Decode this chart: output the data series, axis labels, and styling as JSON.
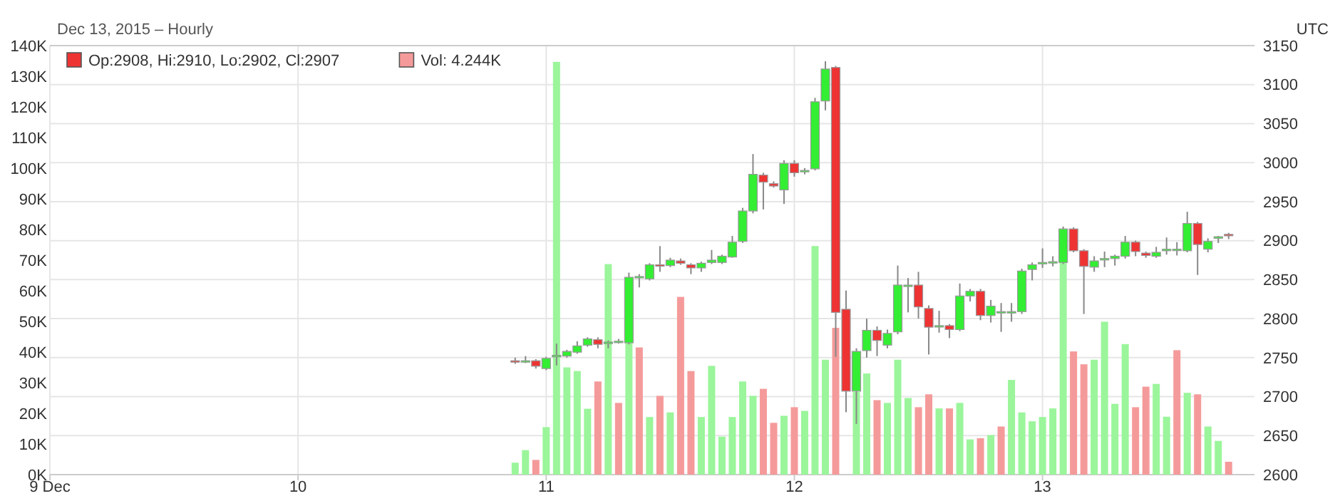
{
  "chart_data": {
    "type": "candlestick",
    "subtitle": "Dec 13, 2015 – Hourly",
    "annotations": [
      "UTC"
    ],
    "legend": "top left",
    "grid": true,
    "x": [
      "2015-12-10T21:00",
      "2015-12-10T22:00",
      "2015-12-10T23:00",
      "2015-12-11T00:00",
      "2015-12-11T01:00",
      "2015-12-11T02:00",
      "2015-12-11T03:00",
      "2015-12-11T04:00",
      "2015-12-11T05:00",
      "2015-12-11T06:00",
      "2015-12-11T07:00",
      "2015-12-11T08:00",
      "2015-12-11T09:00",
      "2015-12-11T10:00",
      "2015-12-11T11:00",
      "2015-12-11T12:00",
      "2015-12-11T13:00",
      "2015-12-11T14:00",
      "2015-12-11T15:00",
      "2015-12-11T16:00",
      "2015-12-11T17:00",
      "2015-12-11T18:00",
      "2015-12-11T19:00",
      "2015-12-11T20:00",
      "2015-12-11T21:00",
      "2015-12-11T22:00",
      "2015-12-11T23:00",
      "2015-12-12T00:00",
      "2015-12-12T01:00",
      "2015-12-12T02:00",
      "2015-12-12T03:00",
      "2015-12-12T04:00",
      "2015-12-12T05:00",
      "2015-12-12T06:00",
      "2015-12-12T07:00",
      "2015-12-12T08:00",
      "2015-12-12T09:00",
      "2015-12-12T10:00",
      "2015-12-12T11:00",
      "2015-12-12T12:00",
      "2015-12-12T13:00",
      "2015-12-12T14:00",
      "2015-12-12T15:00",
      "2015-12-12T16:00",
      "2015-12-12T17:00",
      "2015-12-12T18:00",
      "2015-12-12T19:00",
      "2015-12-12T20:00",
      "2015-12-12T21:00",
      "2015-12-12T22:00",
      "2015-12-12T23:00",
      "2015-12-13T00:00",
      "2015-12-13T01:00",
      "2015-12-13T02:00",
      "2015-12-13T03:00",
      "2015-12-13T04:00",
      "2015-12-13T05:00",
      "2015-12-13T06:00",
      "2015-12-13T07:00",
      "2015-12-13T08:00",
      "2015-12-13T09:00",
      "2015-12-13T10:00",
      "2015-12-13T11:00",
      "2015-12-13T12:00",
      "2015-12-13T13:00",
      "2015-12-13T14:00",
      "2015-12-13T15:00",
      "2015-12-13T16:00",
      "2015-12-13T17:00",
      "2015-12-13T18:00"
    ],
    "xlim": [
      "2015-12-09T00:00",
      "2015-12-13T20:30"
    ],
    "xticks": [
      {
        "value": "2015-12-09",
        "label": "9 Dec"
      },
      {
        "value": "2015-12-10",
        "label": "10"
      },
      {
        "value": "2015-12-11",
        "label": "11"
      },
      {
        "value": "2015-12-12",
        "label": "12"
      },
      {
        "value": "2015-12-13",
        "label": "13"
      }
    ],
    "ylim": [
      0,
      140
    ],
    "yticks": [
      {
        "value": 0,
        "label": "0K"
      },
      {
        "value": 10,
        "label": "10K"
      },
      {
        "value": 20,
        "label": "20K"
      },
      {
        "value": 30,
        "label": "30K"
      },
      {
        "value": 40,
        "label": "40K"
      },
      {
        "value": 50,
        "label": "50K"
      },
      {
        "value": 60,
        "label": "60K"
      },
      {
        "value": 70,
        "label": "70K"
      },
      {
        "value": 80,
        "label": "80K"
      },
      {
        "value": 90,
        "label": "90K"
      },
      {
        "value": 100,
        "label": "100K"
      },
      {
        "value": 110,
        "label": "110K"
      },
      {
        "value": 120,
        "label": "120K"
      },
      {
        "value": 130,
        "label": "130K"
      },
      {
        "value": 140,
        "label": "140K"
      }
    ],
    "y2lim": [
      2600,
      3150
    ],
    "y2ticks": [
      2600,
      2650,
      2700,
      2750,
      2800,
      2850,
      2900,
      2950,
      3000,
      3050,
      3100,
      3150
    ],
    "series": [
      {
        "type": "bar",
        "name": "Vol: 4.244K",
        "color": "#f59a9a",
        "values": [
          3.9,
          8.0,
          4.8,
          15.5,
          134.7,
          35,
          33.8,
          21.5,
          30.4,
          68.7,
          23.4,
          43,
          41.5,
          18.8,
          25.7,
          20.3,
          58,
          33.8,
          18.8,
          35.5,
          12.4,
          18.8,
          30.4,
          25.7,
          28,
          16.9,
          19.2,
          22,
          20.8,
          74.6,
          37.5,
          47.9,
          null,
          27,
          33,
          24.3,
          23.4,
          37.5,
          25,
          22,
          26.2,
          21.6,
          21.6,
          23.4,
          11.5,
          11.9,
          12.9,
          15.7,
          30.9,
          20.3,
          17.4,
          18.8,
          21.6,
          69.3,
          40.2,
          36,
          37.5,
          49.9,
          23.1,
          42.6,
          22,
          28.7,
          29.6,
          18.9,
          40.6,
          26.7,
          26.2,
          15.7,
          11,
          4.2
        ],
        "colors": [
          "#9bf59b",
          "#9bf59b",
          "#f59a9a",
          "#9bf59b",
          "#9bf59b",
          "#9bf59b",
          "#9bf59b",
          "#9bf59b",
          "#f59a9a",
          "#9bf59b",
          "#f59a9a",
          "#9bf59b",
          "#f59a9a",
          "#9bf59b",
          "#f59a9a",
          "#9bf59b",
          "#f59a9a",
          "#f59a9a",
          "#9bf59b",
          "#9bf59b",
          "#9bf59b",
          "#9bf59b",
          "#9bf59b",
          "#9bf59b",
          "#f59a9a",
          "#f59a9a",
          "#9bf59b",
          "#f59a9a",
          "#9bf59b",
          "#9bf59b",
          "#9bf59b",
          "#f59a9a",
          null,
          "#9bf59b",
          "#9bf59b",
          "#f59a9a",
          "#9bf59b",
          "#9bf59b",
          "#9bf59b",
          "#f59a9a",
          "#f59a9a",
          "#9bf59b",
          "#f59a9a",
          "#9bf59b",
          "#9bf59b",
          "#f59a9a",
          "#9bf59b",
          "#f59a9a",
          "#9bf59b",
          "#9bf59b",
          "#9bf59b",
          "#9bf59b",
          "#9bf59b",
          "#9bf59b",
          "#f59a9a",
          "#f59a9a",
          "#9bf59b",
          "#9bf59b",
          "#9bf59b",
          "#9bf59b",
          "#f59a9a",
          "#f59a9a",
          "#9bf59b",
          "#9bf59b",
          "#f59a9a",
          "#9bf59b",
          "#f59a9a",
          "#9bf59b",
          "#9bf59b",
          "#f59a9a"
        ]
      },
      {
        "axis": "y2",
        "name": "Op:2908, Hi:2910, Lo:2902, Cl:2907",
        "color": "#ee3333",
        "ohlc": [
          [
            2746,
            2750,
            2742,
            2745
          ],
          [
            2746,
            2752,
            2743,
            2746
          ],
          [
            2746,
            2748,
            2736,
            2739
          ],
          [
            2736,
            2751,
            2734,
            2749
          ],
          [
            2751,
            2768,
            2740,
            2753
          ],
          [
            2752,
            2760,
            2750,
            2758
          ],
          [
            2757,
            2771,
            2755,
            2765
          ],
          [
            2766,
            2776,
            2764,
            2774
          ],
          [
            2773,
            2776,
            2762,
            2767
          ],
          [
            2768,
            2772,
            2762,
            2770
          ],
          [
            2771,
            2774,
            2768,
            2771
          ],
          [
            2769,
            2859,
            2767,
            2853
          ],
          [
            2854,
            2857,
            2840,
            2854
          ],
          [
            2851,
            2871,
            2849,
            2869
          ],
          [
            2869,
            2893,
            2860,
            2868
          ],
          [
            2868,
            2878,
            2866,
            2875
          ],
          [
            2874,
            2877,
            2869,
            2871
          ],
          [
            2869,
            2871,
            2857,
            2865
          ],
          [
            2865,
            2873,
            2860,
            2871
          ],
          [
            2872,
            2888,
            2870,
            2875
          ],
          [
            2872,
            2882,
            2870,
            2880
          ],
          [
            2879,
            2906,
            2878,
            2898
          ],
          [
            2899,
            2942,
            2897,
            2938
          ],
          [
            2938,
            3011,
            2935,
            2985
          ],
          [
            2984,
            2987,
            2940,
            2975
          ],
          [
            2973,
            2976,
            2968,
            2970
          ],
          [
            2965,
            3003,
            2947,
            2999
          ],
          [
            2999,
            3003,
            2982,
            2987
          ],
          [
            2990,
            2993,
            2985,
            2990
          ],
          [
            2992,
            3083,
            2990,
            3078
          ],
          [
            3079,
            3130,
            3067,
            3120
          ],
          [
            3122,
            3124,
            2751,
            2808
          ],
          [
            2812,
            2836,
            2680,
            2707
          ],
          [
            2707,
            2762,
            2665,
            2758
          ],
          [
            2759,
            2800,
            2750,
            2785
          ],
          [
            2785,
            2790,
            2752,
            2772
          ],
          [
            2766,
            2786,
            2762,
            2781
          ],
          [
            2783,
            2868,
            2780,
            2843
          ],
          [
            2843,
            2852,
            2808,
            2843
          ],
          [
            2843,
            2860,
            2800,
            2815
          ],
          [
            2813,
            2817,
            2754,
            2789
          ],
          [
            2791,
            2810,
            2782,
            2791
          ],
          [
            2791,
            2793,
            2775,
            2786
          ],
          [
            2786,
            2845,
            2784,
            2829
          ],
          [
            2829,
            2838,
            2822,
            2835
          ],
          [
            2835,
            2838,
            2798,
            2804
          ],
          [
            2804,
            2824,
            2795,
            2816
          ],
          [
            2809,
            2820,
            2783,
            2809
          ],
          [
            2809,
            2820,
            2796,
            2809
          ],
          [
            2809,
            2864,
            2806,
            2861
          ],
          [
            2863,
            2872,
            2849,
            2869
          ],
          [
            2872,
            2890,
            2865,
            2872
          ],
          [
            2873,
            2880,
            2867,
            2873
          ],
          [
            2872,
            2918,
            2870,
            2915
          ],
          [
            2915,
            2917,
            2885,
            2887
          ],
          [
            2887,
            2889,
            2806,
            2867
          ],
          [
            2866,
            2880,
            2860,
            2874
          ],
          [
            2877,
            2886,
            2866,
            2877
          ],
          [
            2877,
            2882,
            2868,
            2880
          ],
          [
            2880,
            2906,
            2877,
            2898
          ],
          [
            2898,
            2900,
            2880,
            2886
          ],
          [
            2884,
            2886,
            2878,
            2881
          ],
          [
            2880,
            2892,
            2878,
            2885
          ],
          [
            2887,
            2904,
            2882,
            2889
          ],
          [
            2889,
            2898,
            2881,
            2889
          ],
          [
            2887,
            2937,
            2885,
            2922
          ],
          [
            2922,
            2924,
            2856,
            2895
          ],
          [
            2889,
            2903,
            2885,
            2899
          ],
          [
            2903,
            2906,
            2897,
            2905
          ],
          [
            2908,
            2910,
            2902,
            2907
          ]
        ],
        "colors": [
          "#ee3333",
          "#33ee33",
          "#ee3333",
          "#33ee33",
          "#33ee33",
          "#33ee33",
          "#33ee33",
          "#33ee33",
          "#ee3333",
          "#33ee33",
          "#33ee33",
          "#33ee33",
          "#33ee33",
          "#33ee33",
          "#ee3333",
          "#33ee33",
          "#ee3333",
          "#ee3333",
          "#33ee33",
          "#33ee33",
          "#33ee33",
          "#33ee33",
          "#33ee33",
          "#33ee33",
          "#ee3333",
          "#ee3333",
          "#33ee33",
          "#ee3333",
          "#33ee33",
          "#33ee33",
          "#33ee33",
          "#ee3333",
          "#ee3333",
          "#33ee33",
          "#33ee33",
          "#ee3333",
          "#33ee33",
          "#33ee33",
          "#33ee33",
          "#ee3333",
          "#ee3333",
          "#33ee33",
          "#ee3333",
          "#33ee33",
          "#33ee33",
          "#ee3333",
          "#33ee33",
          "#33ee33",
          "#33ee33",
          "#33ee33",
          "#33ee33",
          "#33ee33",
          "#33ee33",
          "#33ee33",
          "#ee3333",
          "#ee3333",
          "#33ee33",
          "#33ee33",
          "#33ee33",
          "#33ee33",
          "#ee3333",
          "#ee3333",
          "#33ee33",
          "#33ee33",
          "#33ee33",
          "#33ee33",
          "#ee3333",
          "#33ee33",
          "#33ee33",
          "#ee3333"
        ]
      }
    ]
  }
}
